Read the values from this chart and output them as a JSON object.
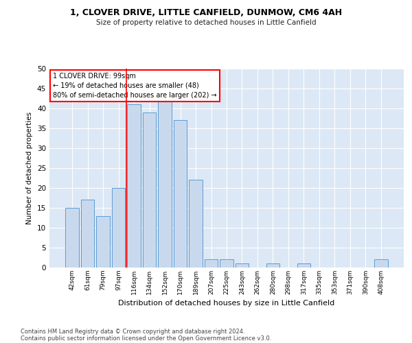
{
  "title1": "1, CLOVER DRIVE, LITTLE CANFIELD, DUNMOW, CM6 4AH",
  "title2": "Size of property relative to detached houses in Little Canfield",
  "xlabel": "Distribution of detached houses by size in Little Canfield",
  "ylabel": "Number of detached properties",
  "categories": [
    "42sqm",
    "61sqm",
    "79sqm",
    "97sqm",
    "116sqm",
    "134sqm",
    "152sqm",
    "170sqm",
    "189sqm",
    "207sqm",
    "225sqm",
    "243sqm",
    "262sqm",
    "280sqm",
    "298sqm",
    "317sqm",
    "335sqm",
    "353sqm",
    "371sqm",
    "390sqm",
    "408sqm"
  ],
  "values": [
    15,
    17,
    13,
    20,
    41,
    39,
    42,
    37,
    22,
    2,
    2,
    1,
    0,
    1,
    0,
    1,
    0,
    0,
    0,
    0,
    2
  ],
  "bar_color": "#c9d9ed",
  "bar_edge_color": "#5b9bd5",
  "background_color": "#dce8f5",
  "annotation_text": "1 CLOVER DRIVE: 99sqm\n← 19% of detached houses are smaller (48)\n80% of semi-detached houses are larger (202) →",
  "ylim": [
    0,
    50
  ],
  "yticks": [
    0,
    5,
    10,
    15,
    20,
    25,
    30,
    35,
    40,
    45,
    50
  ],
  "footnote1": "Contains HM Land Registry data © Crown copyright and database right 2024.",
  "footnote2": "Contains public sector information licensed under the Open Government Licence v3.0."
}
